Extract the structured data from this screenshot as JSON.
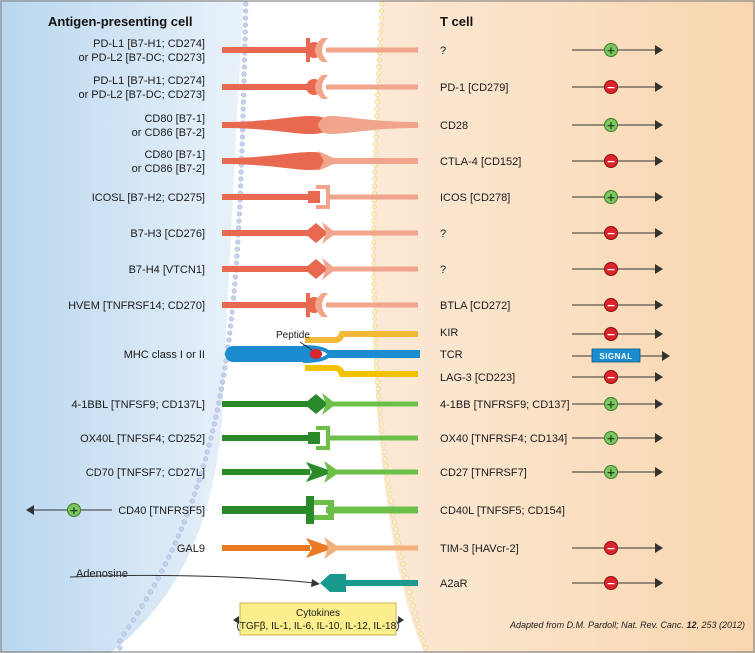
{
  "headers": {
    "apc": "Antigen-presenting cell",
    "tcell": "T cell"
  },
  "colors": {
    "red": "#e8694f",
    "red_light": "#f0a58c",
    "green": "#2a8a2a",
    "green_light": "#6cc04a",
    "orange": "#ec7a22",
    "orange_light": "#f4b07a",
    "teal": "#1a9a8e",
    "blue": "#1a8ccf",
    "kir": "#f2b838",
    "lag3": "#f2c200",
    "plus_fill": "#7dc561",
    "minus_fill": "#d9252a"
  },
  "rows": [
    {
      "ligand": [
        "PD-L1 [B7-H1; CD274]",
        "or PD-L2 [B7-DC; CD273]"
      ],
      "receptor": "?",
      "signal": "plus",
      "family": "red",
      "shape": "cup-ball"
    },
    {
      "ligand": [
        "PD-L1 [B7-H1; CD274]",
        "or PD-L2 [B7-DC; CD273]"
      ],
      "receptor": "PD-1 [CD279]",
      "signal": "minus",
      "family": "red",
      "shape": "cup-ball-open"
    },
    {
      "ligand": [
        "CD80 [B7-1]",
        "or CD86 [B7-2]"
      ],
      "receptor": "CD28",
      "signal": "plus",
      "family": "red",
      "shape": "bulb"
    },
    {
      "ligand": [
        "CD80 [B7-1]",
        "or CD86 [B7-2]"
      ],
      "receptor": "CTLA-4 [CD152]",
      "signal": "minus",
      "family": "red",
      "shape": "bulb-chevron"
    },
    {
      "ligand": [
        "ICOSL [B7-H2; CD275]"
      ],
      "receptor": "ICOS [CD278]",
      "signal": "plus",
      "family": "red",
      "shape": "bracket"
    },
    {
      "ligand": [
        "B7-H3 [CD276]"
      ],
      "receptor": "?",
      "signal": "minus",
      "family": "red",
      "shape": "diamond"
    },
    {
      "ligand": [
        "B7-H4 [VTCN1]"
      ],
      "receptor": "?",
      "signal": "minus",
      "family": "red",
      "shape": "diamond"
    },
    {
      "ligand": [
        "HVEM [TNFRSF14; CD270]"
      ],
      "receptor": "BTLA [CD272]",
      "signal": "minus",
      "family": "red",
      "shape": "cup-ball"
    },
    {
      "ligand": [
        "4-1BBL [TNFSF9; CD137L]"
      ],
      "receptor": "4-1BB [TNFRSF9; CD137]",
      "signal": "plus",
      "family": "green",
      "shape": "diamond-g"
    },
    {
      "ligand": [
        "OX40L [TNFSF4; CD252]"
      ],
      "receptor": "OX40 [TNFRSF4; CD134]",
      "signal": "plus",
      "family": "green",
      "shape": "bracket-g"
    },
    {
      "ligand": [
        "CD70 [TNFSF7; CD27L]"
      ],
      "receptor": "CD27 [TNFRSF7]",
      "signal": "plus",
      "family": "green",
      "shape": "arrow-g"
    },
    {
      "ligand": [
        "CD40 [TNFRSF5]"
      ],
      "receptor": "CD40L [TNFSF5; CD154]",
      "signal": "left-plus",
      "family": "green",
      "shape": "big-bracket"
    },
    {
      "ligand": [
        "GAL9"
      ],
      "receptor": "TIM-3 [HAVcr-2]",
      "signal": "minus",
      "family": "orange",
      "shape": "arrow-o"
    },
    {
      "ligand": [
        "Adenosine"
      ],
      "receptor": "A2aR",
      "signal": "minus",
      "family": "teal",
      "shape": "adenosine"
    }
  ],
  "mhc": {
    "ligand": "MHC class I or II",
    "peptide": "Peptide",
    "receptors": [
      {
        "label": "KIR",
        "signal": "minus"
      },
      {
        "label": "TCR",
        "signal": "signal"
      },
      {
        "label": "LAG-3 [CD223]",
        "signal": "minus"
      }
    ],
    "signal_label": "SIGNAL"
  },
  "cytokines": {
    "line1": "Cytokines",
    "line2": "(TGFβ, IL-1, IL-6, IL-10, IL-12, IL-18)"
  },
  "citation": {
    "prefix": "Adapted from D.M. Pardoll; Nat. Rev. Canc. ",
    "volume": "12",
    "suffix": ", 253 (2012)"
  },
  "symbols": {
    "plus": "+",
    "minus": "−"
  }
}
